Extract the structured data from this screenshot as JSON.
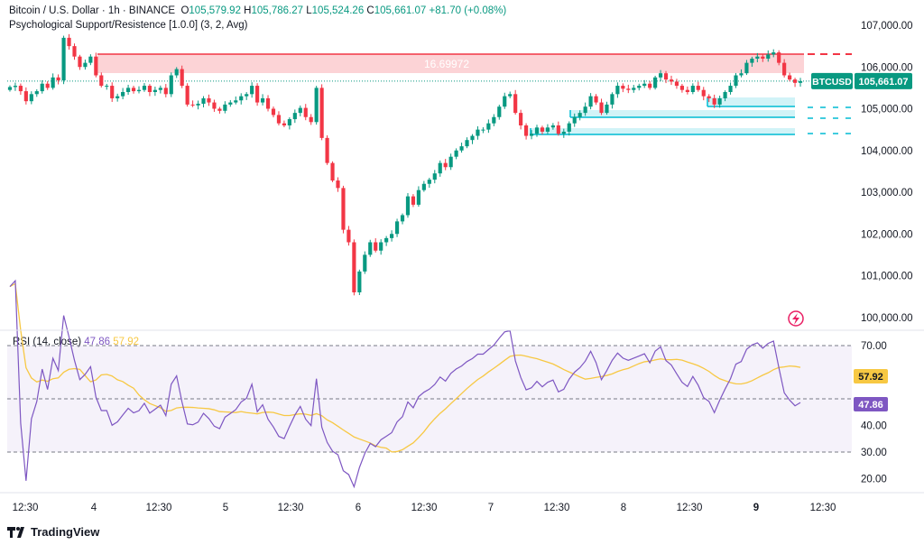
{
  "header": {
    "symbol_line": "Bitcoin / U.S. Dollar · 1h · BINANCE",
    "o_label": "O",
    "o_value": "105,579.92",
    "h_label": "H",
    "h_value": "105,786.27",
    "l_label": "L",
    "l_value": "105,524.26",
    "c_label": "C",
    "c_value": "105,661.07",
    "change": "+81.70 (+0.08%)",
    "indicator": "Psychological Support/Resistence [1.0.0] (3, 2, Avg)"
  },
  "rsi": {
    "label": "RSI (14, close)",
    "value": "47.86",
    "ma_value": "57.92"
  },
  "price_axis": [
    "107,000.00",
    "106,000.00",
    "105,000.00",
    "104,000.00",
    "103,000.00",
    "102,000.00",
    "101,000.00",
    "100,000.00"
  ],
  "rsi_axis": [
    "70.00",
    "40.00",
    "30.00",
    "20.00"
  ],
  "time_axis": [
    {
      "t": "12:30",
      "bold": false
    },
    {
      "t": "4",
      "bold": false
    },
    {
      "t": "12:30",
      "bold": false
    },
    {
      "t": "5",
      "bold": false
    },
    {
      "t": "12:30",
      "bold": false
    },
    {
      "t": "6",
      "bold": false
    },
    {
      "t": "12:30",
      "bold": false
    },
    {
      "t": "7",
      "bold": false
    },
    {
      "t": "12:30",
      "bold": false
    },
    {
      "t": "8",
      "bold": false
    },
    {
      "t": "12:30",
      "bold": false
    },
    {
      "t": "9",
      "bold": true
    },
    {
      "t": "12:30",
      "bold": false
    }
  ],
  "price_tag": {
    "symbol": "BTCUSD",
    "value": "105,661.07"
  },
  "rsi_tags": {
    "ma": "57.92",
    "rsi": "47.86"
  },
  "zone_label": "16.69972",
  "brand": "TradingView",
  "colors": {
    "up": "#089981",
    "down": "#f23645",
    "rsi": "#7e57c2",
    "rsi_ma": "#f7c843",
    "zone": "#f23645",
    "support": "#00bcd4"
  },
  "chart_data": {
    "type": "candlestick",
    "title": "Bitcoin / U.S. Dollar · 1h · BINANCE",
    "ylim": [
      99700,
      107500
    ],
    "close": [
      105520,
      105550,
      105420,
      105180,
      105350,
      105420,
      105600,
      105500,
      105750,
      105680,
      106700,
      106500,
      106250,
      106000,
      106100,
      106250,
      105800,
      105550,
      105550,
      105250,
      105300,
      105400,
      105500,
      105420,
      105450,
      105550,
      105400,
      105450,
      105500,
      105350,
      105800,
      105950,
      105550,
      105100,
      105080,
      105120,
      105250,
      105150,
      105000,
      104950,
      105100,
      105150,
      105200,
      105300,
      105350,
      105550,
      105150,
      105250,
      105000,
      104850,
      104650,
      104600,
      104750,
      104900,
      105020,
      104800,
      104680,
      105500,
      104300,
      103700,
      103280,
      103100,
      102100,
      101800,
      100600,
      101100,
      101500,
      101800,
      101600,
      101800,
      101900,
      102000,
      102300,
      102450,
      102900,
      102700,
      103050,
      103200,
      103300,
      103450,
      103700,
      103600,
      103850,
      104000,
      104100,
      104250,
      104350,
      104500,
      104500,
      104650,
      104800,
      105050,
      105300,
      105350,
      104900,
      104600,
      104350,
      104400,
      104550,
      104450,
      104550,
      104600,
      104400,
      104450,
      104650,
      104800,
      104900,
      105050,
      105300,
      105150,
      104900,
      105100,
      105350,
      105550,
      105480,
      105450,
      105500,
      105550,
      105600,
      105500,
      105750,
      105850,
      105700,
      105650,
      105550,
      105450,
      105400,
      105550,
      105450,
      105300,
      105250,
      105100,
      105250,
      105400,
      105550,
      105800,
      105850,
      106100,
      106200,
      106250,
      106200,
      106300,
      106350,
      106100,
      105800,
      105700,
      105620,
      105661
    ]
  }
}
